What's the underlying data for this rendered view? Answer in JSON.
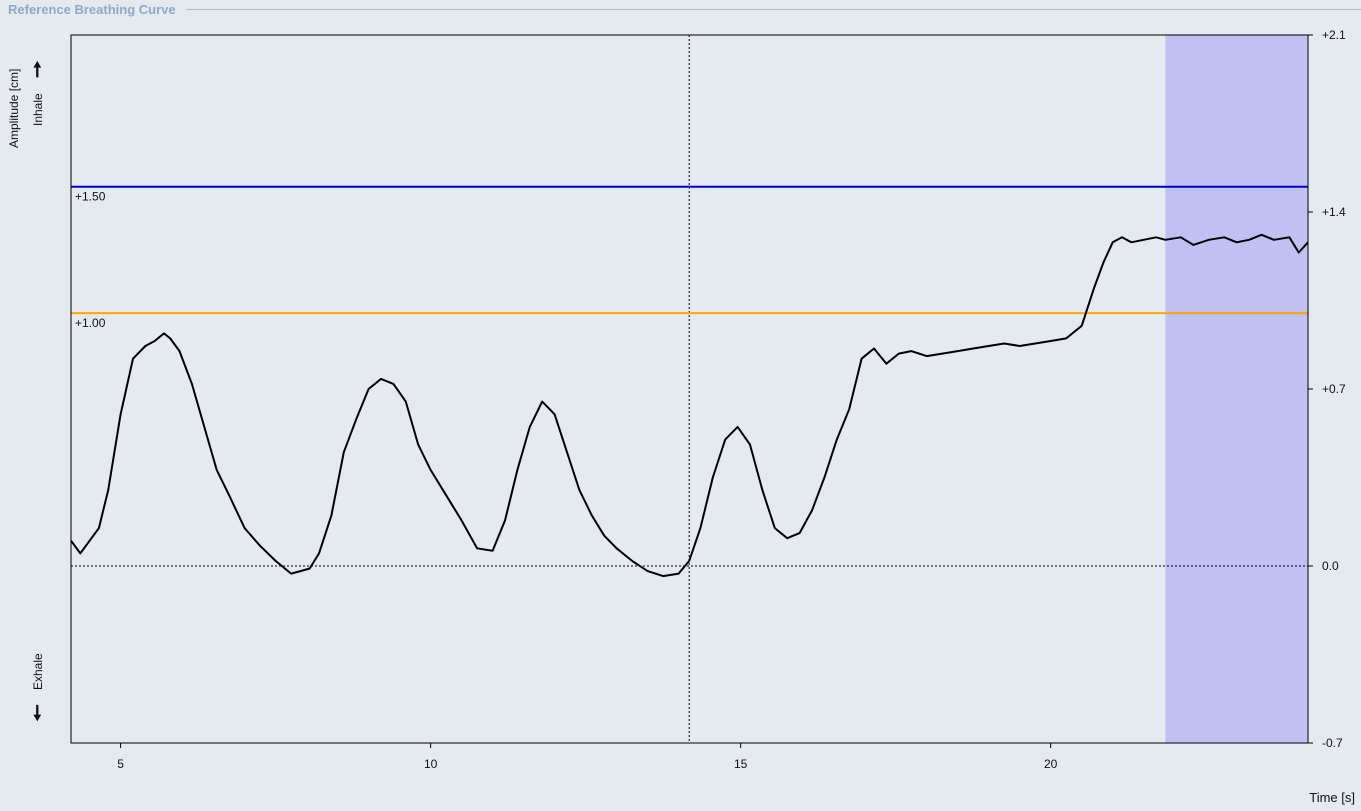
{
  "panel": {
    "title": "Reference Breathing Curve"
  },
  "left_labels": {
    "ylabel": "Amplitude [cm]",
    "inhale": "Inhale",
    "exhale": "Exhale",
    "up_arrow": "🠕",
    "down_arrow": "🠗"
  },
  "chart_data": {
    "type": "line",
    "title": "Reference Breathing Curve",
    "xlabel": "Time [s]",
    "ylabel": "Amplitude [cm]",
    "xlim": [
      4.2,
      24.15
    ],
    "ylim": [
      -0.7,
      2.1
    ],
    "x_ticks": [
      5,
      10,
      15,
      20
    ],
    "y_ticks": [
      {
        "value": 2.1,
        "label": "+2.1"
      },
      {
        "value": 1.4,
        "label": "+1.4"
      },
      {
        "value": 0.7,
        "label": "+0.7"
      },
      {
        "value": 0.0,
        "label": "0.0"
      },
      {
        "value": -0.7,
        "label": "-0.7"
      }
    ],
    "grid": false,
    "threshold_lines": [
      {
        "value": 1.5,
        "label": "+1.50",
        "color": "#0000cc"
      },
      {
        "value": 1.0,
        "label": "+1.00",
        "color": "#ffa500"
      }
    ],
    "zero_line": {
      "value": 0.0,
      "style": "dotted"
    },
    "cursor_line": {
      "x": 14.17,
      "style": "dotted"
    },
    "highlight_region": {
      "x0": 21.85,
      "x1": 24.15,
      "color": "#c0c0f2"
    },
    "series": [
      {
        "color": "#000000",
        "x": [
          4.2,
          4.35,
          4.5,
          4.65,
          4.8,
          5.0,
          5.2,
          5.4,
          5.55,
          5.7,
          5.8,
          5.95,
          6.15,
          6.35,
          6.55,
          6.75,
          7.0,
          7.25,
          7.5,
          7.75,
          7.9,
          8.05,
          8.2,
          8.4,
          8.6,
          8.8,
          9.0,
          9.2,
          9.4,
          9.6,
          9.8,
          10.0,
          10.25,
          10.5,
          10.75,
          11.0,
          11.2,
          11.4,
          11.6,
          11.8,
          12.0,
          12.2,
          12.4,
          12.6,
          12.8,
          13.0,
          13.25,
          13.5,
          13.75,
          14.0,
          14.17,
          14.35,
          14.55,
          14.75,
          14.95,
          15.15,
          15.35,
          15.55,
          15.75,
          15.95,
          16.15,
          16.35,
          16.55,
          16.75,
          16.95,
          17.15,
          17.35,
          17.55,
          17.75,
          18.0,
          18.25,
          18.5,
          18.75,
          19.0,
          19.25,
          19.5,
          19.75,
          20.0,
          20.25,
          20.5,
          20.7,
          20.85,
          21.0,
          21.15,
          21.3,
          21.5,
          21.7,
          21.85,
          22.1,
          22.3,
          22.55,
          22.8,
          23.0,
          23.2,
          23.4,
          23.6,
          23.85,
          24.0,
          24.15
        ],
        "y": [
          0.1,
          0.05,
          0.1,
          0.15,
          0.3,
          0.6,
          0.82,
          0.87,
          0.89,
          0.92,
          0.9,
          0.85,
          0.72,
          0.55,
          0.38,
          0.28,
          0.15,
          0.08,
          0.02,
          -0.03,
          -0.02,
          -0.01,
          0.05,
          0.2,
          0.45,
          0.58,
          0.7,
          0.74,
          0.72,
          0.65,
          0.48,
          0.38,
          0.28,
          0.18,
          0.07,
          0.06,
          0.18,
          0.38,
          0.55,
          0.65,
          0.6,
          0.45,
          0.3,
          0.2,
          0.12,
          0.07,
          0.02,
          -0.02,
          -0.04,
          -0.03,
          0.02,
          0.15,
          0.35,
          0.5,
          0.55,
          0.48,
          0.3,
          0.15,
          0.11,
          0.13,
          0.22,
          0.35,
          0.5,
          0.62,
          0.82,
          0.86,
          0.8,
          0.84,
          0.85,
          0.83,
          0.84,
          0.85,
          0.86,
          0.87,
          0.88,
          0.87,
          0.88,
          0.89,
          0.9,
          0.95,
          1.1,
          1.2,
          1.28,
          1.3,
          1.28,
          1.29,
          1.3,
          1.29,
          1.3,
          1.27,
          1.29,
          1.3,
          1.28,
          1.29,
          1.31,
          1.29,
          1.3,
          1.24,
          1.28
        ]
      }
    ]
  },
  "axis_text": {
    "xlabel": "Time [s]"
  }
}
